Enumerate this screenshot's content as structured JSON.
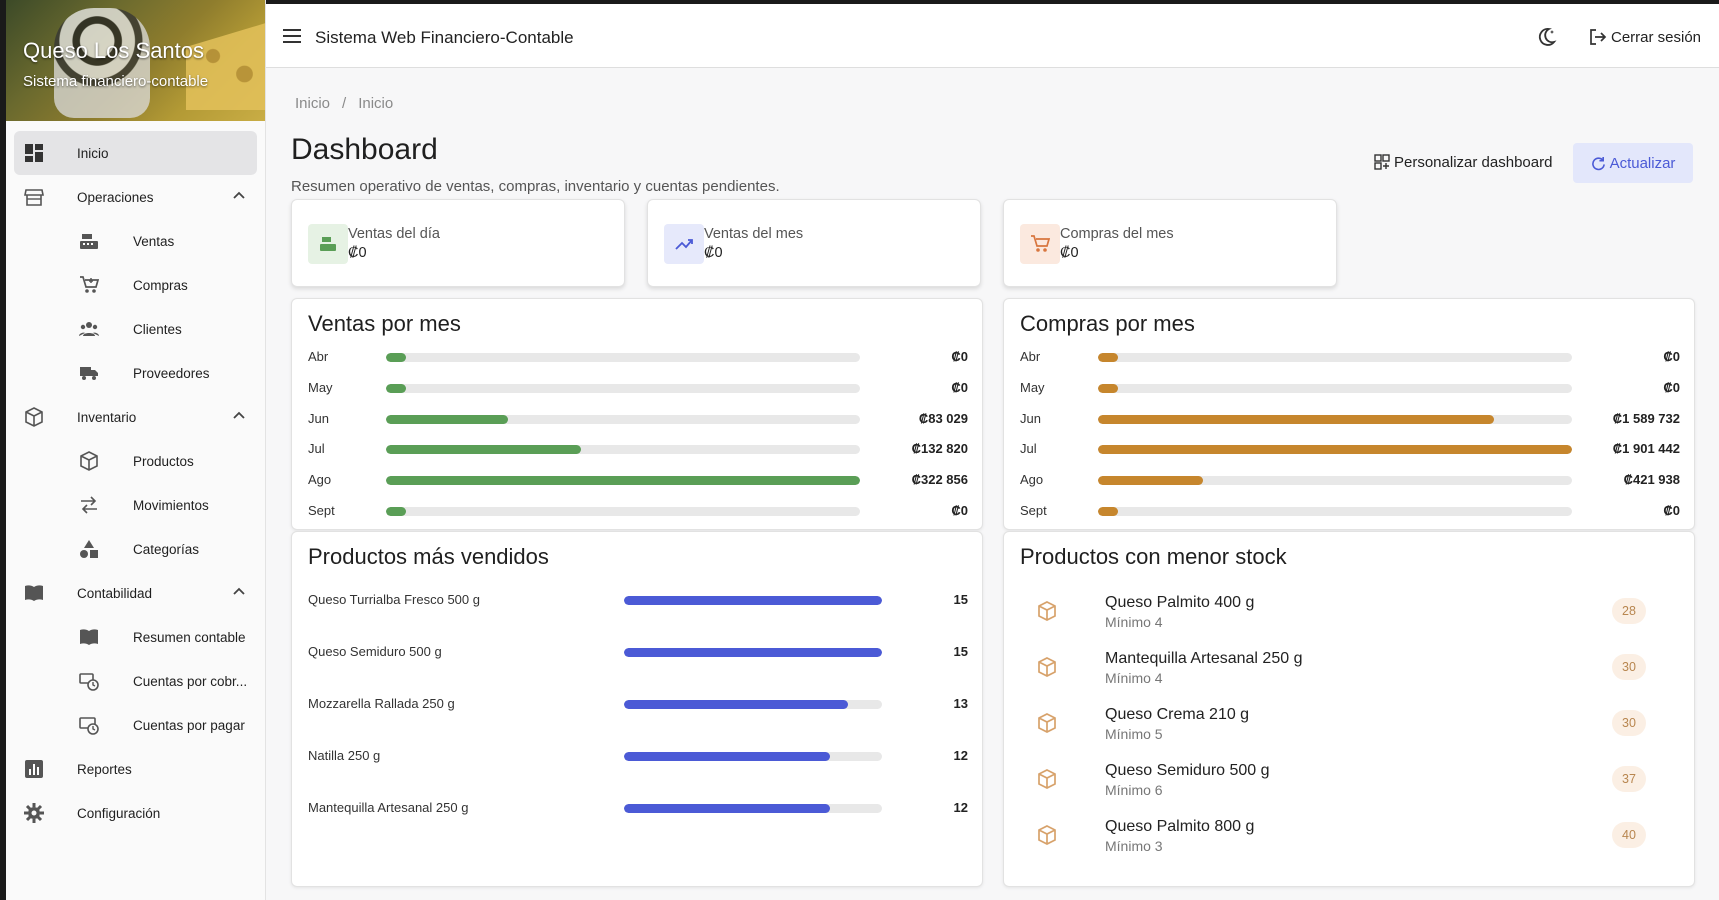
{
  "brand": {
    "title": "Queso Los Santos",
    "subtitle": "Sistema financiero-contable"
  },
  "header": {
    "app_title": "Sistema Web Financiero-Contable",
    "logout_label": "Cerrar sesión"
  },
  "sidebar": {
    "items": [
      {
        "label": "Inicio",
        "icon": "dashboard-icon",
        "active": true
      },
      {
        "label": "Operaciones",
        "icon": "store-icon",
        "expanded": true
      },
      {
        "label": "Ventas",
        "icon": "cash-register-icon"
      },
      {
        "label": "Compras",
        "icon": "cart-icon"
      },
      {
        "label": "Clientes",
        "icon": "people-icon"
      },
      {
        "label": "Proveedores",
        "icon": "truck-icon"
      },
      {
        "label": "Inventario",
        "icon": "package-icon",
        "expanded": true
      },
      {
        "label": "Productos",
        "icon": "box-icon"
      },
      {
        "label": "Movimientos",
        "icon": "swap-icon"
      },
      {
        "label": "Categorías",
        "icon": "shapes-icon"
      },
      {
        "label": "Contabilidad",
        "icon": "book-icon",
        "expanded": true
      },
      {
        "label": "Resumen contable",
        "icon": "book-open-icon"
      },
      {
        "label": "Cuentas por cobr...",
        "icon": "receivable-clock-icon"
      },
      {
        "label": "Cuentas por pagar",
        "icon": "payable-clock-icon"
      },
      {
        "label": "Reportes",
        "icon": "report-icon"
      },
      {
        "label": "Configuración",
        "icon": "gear-icon"
      }
    ]
  },
  "breadcrumb": [
    "Inicio",
    "/",
    "Inicio"
  ],
  "page": {
    "title": "Dashboard",
    "subtitle": "Resumen operativo de ventas, compras, inventario y cuentas pendientes.",
    "customize_label": "Personalizar dashboard",
    "refresh_label": "Actualizar"
  },
  "kpis": [
    {
      "label": "Ventas del día",
      "value": "₡0",
      "icon": "cash-register-icon",
      "color": "#5a9e56",
      "bg": "#e6f2e4"
    },
    {
      "label": "Ventas del mes",
      "value": "₡0",
      "icon": "trending-up-icon",
      "color": "#4b5ad6",
      "bg": "#e6e9fb"
    },
    {
      "label": "Compras del mes",
      "value": "₡0",
      "icon": "cart-icon",
      "color": "#d8763f",
      "bg": "#fbe9df"
    }
  ],
  "ventas_por_mes": {
    "title": "Ventas por mes",
    "color": "#5a9e56",
    "rows": [
      {
        "month": "Abr",
        "value_label": "₡0",
        "value": 0
      },
      {
        "month": "May",
        "value_label": "₡0",
        "value": 0
      },
      {
        "month": "Jun",
        "value_label": "₡83 029",
        "value": 83029
      },
      {
        "month": "Jul",
        "value_label": "₡132 820",
        "value": 132820
      },
      {
        "month": "Ago",
        "value_label": "₡322 856",
        "value": 322856
      },
      {
        "month": "Sept",
        "value_label": "₡0",
        "value": 0
      }
    ]
  },
  "compras_por_mes": {
    "title": "Compras por mes",
    "color": "#c6862d",
    "rows": [
      {
        "month": "Abr",
        "value_label": "₡0",
        "value": 0
      },
      {
        "month": "May",
        "value_label": "₡0",
        "value": 0
      },
      {
        "month": "Jun",
        "value_label": "₡1 589 732",
        "value": 1589732
      },
      {
        "month": "Jul",
        "value_label": "₡1 901 442",
        "value": 1901442
      },
      {
        "month": "Ago",
        "value_label": "₡421 938",
        "value": 421938
      },
      {
        "month": "Sept",
        "value_label": "₡0",
        "value": 0
      }
    ]
  },
  "top_products": {
    "title": "Productos más vendidos",
    "rows": [
      {
        "name": "Queso Turrialba Fresco 500 g",
        "qty": 15
      },
      {
        "name": "Queso Semiduro 500 g",
        "qty": 15
      },
      {
        "name": "Mozzarella Rallada 250 g",
        "qty": 13
      },
      {
        "name": "Natilla 250 g",
        "qty": 12
      },
      {
        "name": "Mantequilla Artesanal 250 g",
        "qty": 12
      }
    ]
  },
  "low_stock": {
    "title": "Productos con menor stock",
    "rows": [
      {
        "name": "Queso Palmito 400 g",
        "min": "Mínimo 4",
        "stock": "28"
      },
      {
        "name": "Mantequilla Artesanal 250 g",
        "min": "Mínimo 4",
        "stock": "30"
      },
      {
        "name": "Queso Crema 210 g",
        "min": "Mínimo 5",
        "stock": "30"
      },
      {
        "name": "Queso Semiduro 500 g",
        "min": "Mínimo 6",
        "stock": "37"
      },
      {
        "name": "Queso Palmito 800 g",
        "min": "Mínimo 3",
        "stock": "40"
      }
    ]
  }
}
